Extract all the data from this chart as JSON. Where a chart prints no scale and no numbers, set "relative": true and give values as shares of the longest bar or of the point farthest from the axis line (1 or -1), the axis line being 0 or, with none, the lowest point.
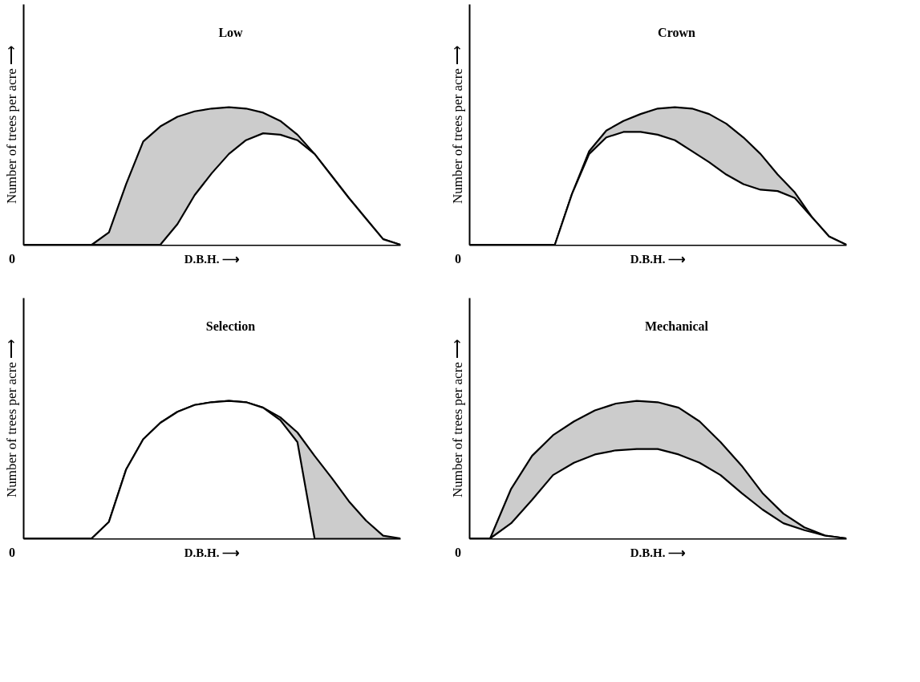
{
  "chart_data": [
    {
      "type": "area",
      "title": "Low",
      "xlabel": "D.B.H. ⟶",
      "ylabel": "Number of trees per acre ⟶",
      "relative": true,
      "tick_labels": false,
      "annotations": [
        "0"
      ],
      "categories": [
        null,
        null,
        null,
        null,
        null,
        null,
        null,
        null,
        null,
        null,
        null,
        null,
        null,
        null,
        null,
        null,
        null,
        null,
        null,
        null,
        null,
        null,
        null
      ],
      "series": [
        {
          "color": "#000000",
          "values": [
            0,
            0,
            0,
            0,
            0,
            0.09,
            0.44,
            0.75,
            0.86,
            0.93,
            0.97,
            0.99,
            1,
            0.99,
            0.96,
            0.9,
            0.8,
            0.66,
            0.5,
            0.34,
            0.19,
            0.04,
            0
          ]
        },
        {
          "color": "#000000",
          "values": [
            0,
            0,
            0,
            0,
            0,
            0,
            0,
            0,
            0,
            0.15,
            0.36,
            0.52,
            0.66,
            0.76,
            0.81,
            0.8,
            0.76,
            0.66,
            0.5,
            0.34,
            0.19,
            0.04,
            0
          ]
        }
      ]
    },
    {
      "type": "area",
      "title": "Crown",
      "xlabel": "D.B.H. ⟶",
      "ylabel": "Number of trees per acre ⟶",
      "relative": true,
      "tick_labels": false,
      "annotations": [
        "0"
      ],
      "categories": [
        null,
        null,
        null,
        null,
        null,
        null,
        null,
        null,
        null,
        null,
        null,
        null,
        null,
        null,
        null,
        null,
        null,
        null,
        null,
        null,
        null,
        null,
        null
      ],
      "series": [
        {
          "color": "#000000",
          "values": [
            0,
            0,
            0,
            0,
            0,
            0,
            0.37,
            0.68,
            0.83,
            0.9,
            0.95,
            0.99,
            1,
            0.99,
            0.95,
            0.88,
            0.78,
            0.66,
            0.51,
            0.38,
            0.2,
            0.06,
            0
          ]
        },
        {
          "color": "#000000",
          "values": [
            0,
            0,
            0,
            0,
            0,
            0,
            0.37,
            0.66,
            0.78,
            0.82,
            0.82,
            0.8,
            0.76,
            0.68,
            0.6,
            0.51,
            0.44,
            0.4,
            0.39,
            0.34,
            0.2,
            0.06,
            0
          ]
        }
      ]
    },
    {
      "type": "area",
      "title": "Selection",
      "xlabel": "D.B.H. ⟶",
      "ylabel": "Number of trees per acre ⟶",
      "relative": true,
      "tick_labels": false,
      "annotations": [
        "0"
      ],
      "categories": [
        null,
        null,
        null,
        null,
        null,
        null,
        null,
        null,
        null,
        null,
        null,
        null,
        null,
        null,
        null,
        null,
        null,
        null,
        null,
        null,
        null,
        null,
        null
      ],
      "series": [
        {
          "color": "#000000",
          "values": [
            0,
            0,
            0,
            0,
            0,
            0.12,
            0.5,
            0.72,
            0.84,
            0.92,
            0.97,
            0.99,
            1,
            0.99,
            0.95,
            0.88,
            0.77,
            0.6,
            0.44,
            0.27,
            0.13,
            0.02,
            0
          ]
        },
        {
          "color": "#000000",
          "values": [
            0,
            0,
            0,
            0,
            0,
            0.12,
            0.5,
            0.72,
            0.84,
            0.92,
            0.97,
            0.99,
            1,
            0.99,
            0.95,
            0.86,
            0.7,
            0,
            null,
            null,
            null,
            null,
            null
          ]
        }
      ]
    },
    {
      "type": "area",
      "title": "Mechanical",
      "xlabel": "D.B.H. ⟶",
      "ylabel": "Number of trees per acre ⟶",
      "relative": true,
      "tick_labels": false,
      "annotations": [
        "0"
      ],
      "categories": [
        null,
        null,
        null,
        null,
        null,
        null,
        null,
        null,
        null,
        null,
        null,
        null,
        null,
        null,
        null,
        null,
        null,
        null,
        null
      ],
      "series": [
        {
          "color": "#000000",
          "values": [
            0,
            0,
            0.36,
            0.6,
            0.75,
            0.85,
            0.93,
            0.98,
            1,
            0.99,
            0.95,
            0.85,
            0.7,
            0.53,
            0.33,
            0.18,
            0.08,
            0.02,
            0
          ]
        },
        {
          "color": "#000000",
          "values": [
            0,
            0,
            0.11,
            0.28,
            0.46,
            0.55,
            0.61,
            0.64,
            0.65,
            0.65,
            0.61,
            0.55,
            0.46,
            0.33,
            0.21,
            0.11,
            0.06,
            0.02,
            0
          ]
        }
      ]
    }
  ]
}
